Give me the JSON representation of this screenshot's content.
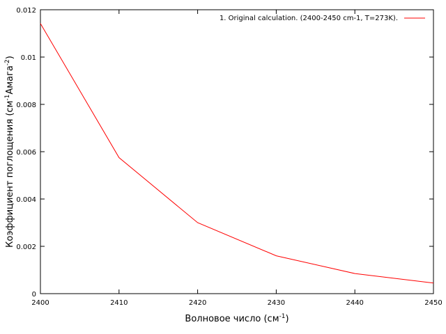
{
  "chart_data": {
    "type": "line",
    "xlabel": "Волновое число (см",
    "xlabel_sup": "-1",
    "xlabel_tail": ")",
    "ylabel": "Коэффициент поглощения (см",
    "ylabel_sup1": "-1",
    "ylabel_mid": "Амага",
    "ylabel_sup2": "-2",
    "ylabel_tail": ")",
    "xlim": [
      2400,
      2450
    ],
    "ylim": [
      0,
      0.012
    ],
    "xticks": [
      "2400",
      "2410",
      "2420",
      "2430",
      "2440",
      "2450"
    ],
    "yticks": [
      "0",
      "0.002",
      "0.004",
      "0.006",
      "0.008",
      "0.01",
      "0.012"
    ],
    "legend_position": "top-right",
    "series": [
      {
        "name": "1. Original calculation. (2400-2450 cm-1, T=273K).",
        "color": "#ff0000",
        "x": [
          2400,
          2410,
          2420,
          2430,
          2440,
          2450
        ],
        "y": [
          0.01142,
          0.00575,
          0.003,
          0.0016,
          0.00085,
          0.00045
        ]
      }
    ]
  }
}
